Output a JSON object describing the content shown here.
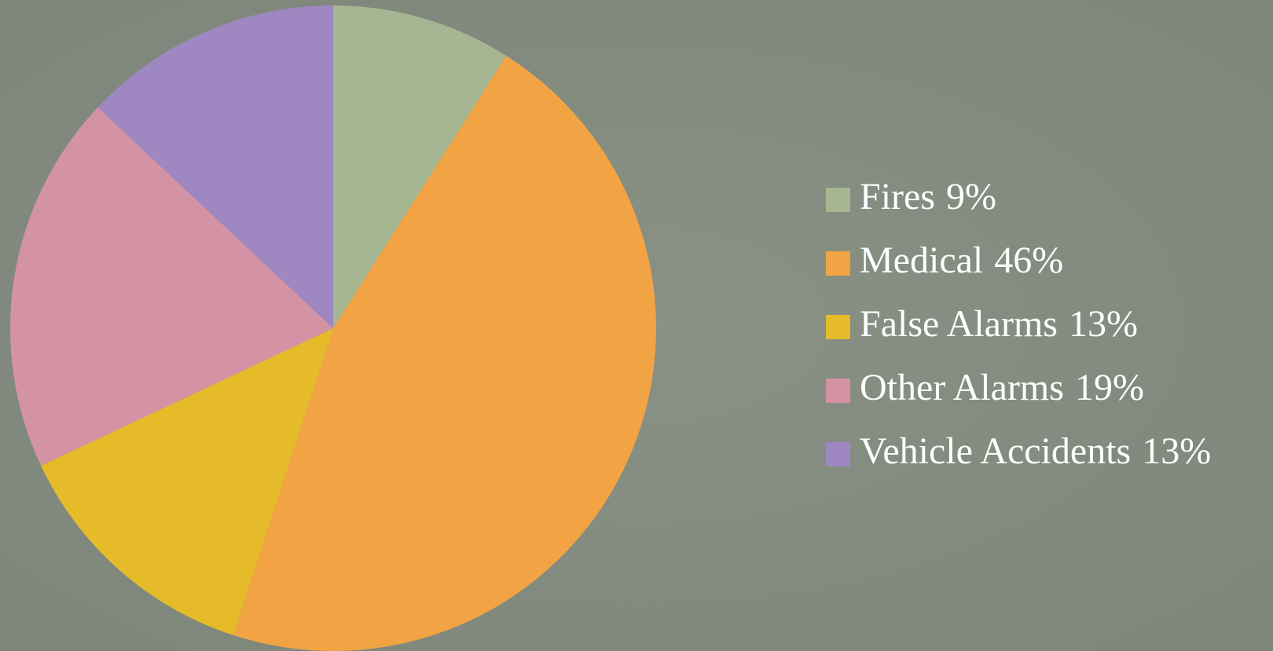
{
  "chart_data": {
    "type": "pie",
    "categories": [
      "Fires",
      "Medical",
      "False Alarms",
      "Other Alarms",
      "Vehicle Accidents"
    ],
    "values": [
      9,
      46,
      13,
      19,
      13
    ],
    "value_labels": [
      "9%",
      "46%",
      "13%",
      "19%",
      "13%"
    ],
    "colors": [
      "#a6b692",
      "#f2a444",
      "#e6bb2a",
      "#d393a4",
      "#9f87c2"
    ]
  }
}
